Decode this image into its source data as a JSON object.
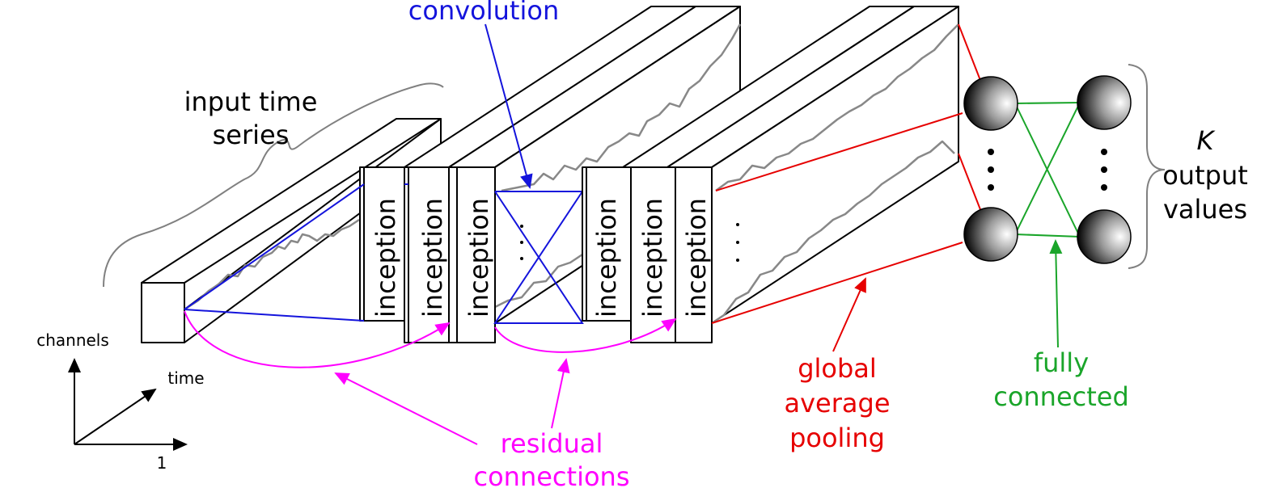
{
  "labels": {
    "input_series_line1": "input time",
    "input_series_line2": "series",
    "convolution": "convolution",
    "inception": "inception",
    "k_symbol": "K",
    "output_line1": "output",
    "output_line2": "values",
    "gap_line1": "global",
    "gap_line2": "average",
    "gap_line3": "pooling",
    "fc_line1": "fully",
    "fc_line2": "connected",
    "residual_line1": "residual",
    "residual_line2": "connections",
    "axis_channels": "channels",
    "axis_time": "time",
    "axis_one": "1"
  },
  "colors": {
    "convolution": "#1414dc",
    "gap": "#e60000",
    "fully_connected": "#1aa52a",
    "residual": "#ff00ff",
    "series": "#888888",
    "annotation_brace": "#808080"
  }
}
